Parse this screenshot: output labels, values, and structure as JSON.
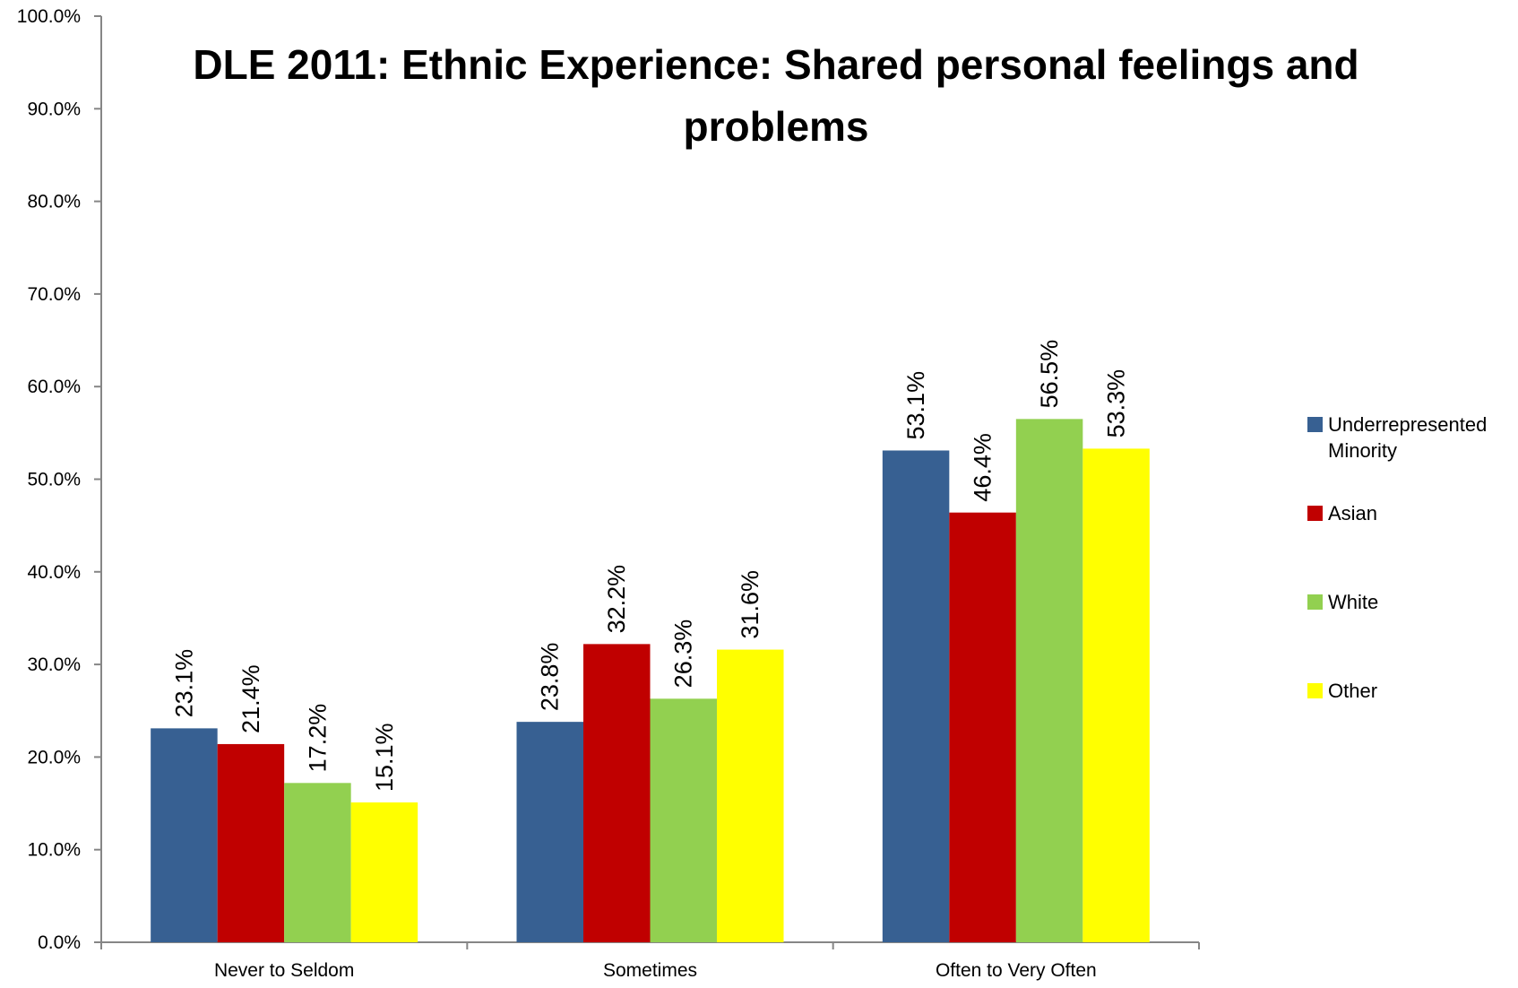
{
  "chart_data": {
    "type": "bar",
    "title_lines": [
      "DLE 2011: Ethnic Experience: Shared personal feelings and",
      "problems"
    ],
    "categories": [
      "Never to Seldom",
      "Sometimes",
      "Often to Very Often"
    ],
    "series": [
      {
        "name": "Underrepresented Minority",
        "legend_lines": [
          "Underrepresented",
          "Minority"
        ],
        "color": "#376092",
        "values": [
          23.1,
          23.8,
          53.1
        ],
        "labels": [
          "23.1%",
          "23.8%",
          "53.1%"
        ]
      },
      {
        "name": "Asian",
        "legend_lines": [
          "Asian"
        ],
        "color": "#C00000",
        "values": [
          21.4,
          32.2,
          46.4
        ],
        "labels": [
          "21.4%",
          "32.2%",
          "46.4%"
        ]
      },
      {
        "name": "White",
        "legend_lines": [
          "White"
        ],
        "color": "#92D050",
        "values": [
          17.2,
          26.3,
          56.5
        ],
        "labels": [
          "17.2%",
          "26.3%",
          "56.5%"
        ]
      },
      {
        "name": "Other",
        "legend_lines": [
          "Other"
        ],
        "color": "#FFFF00",
        "values": [
          15.1,
          31.6,
          53.3
        ],
        "labels": [
          "15.1%",
          "31.6%",
          "53.3%"
        ]
      }
    ],
    "y_ticks": [
      0,
      10,
      20,
      30,
      40,
      50,
      60,
      70,
      80,
      90,
      100
    ],
    "y_tick_labels": [
      "0.0%",
      "10.0%",
      "20.0%",
      "30.0%",
      "40.0%",
      "50.0%",
      "60.0%",
      "70.0%",
      "80.0%",
      "90.0%",
      "100.0%"
    ],
    "ylim": [
      0,
      100
    ],
    "xlabel": "",
    "ylabel": "",
    "grid": false,
    "legend_position": "right"
  }
}
